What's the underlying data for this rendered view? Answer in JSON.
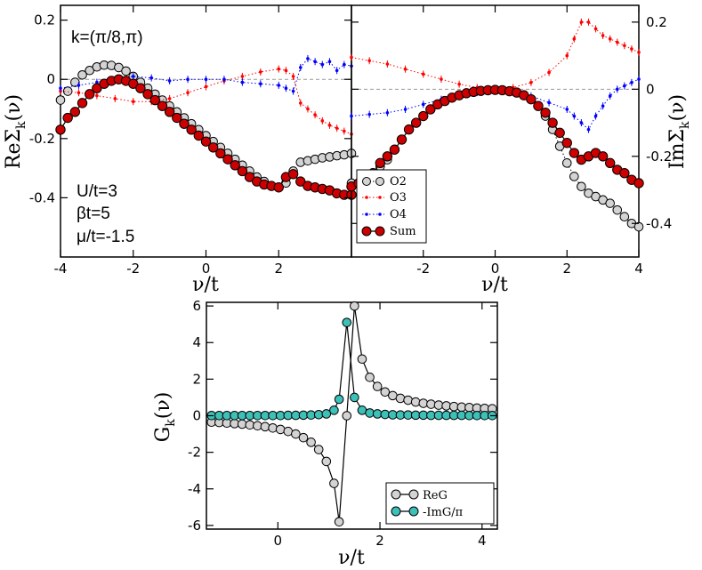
{
  "chart_data": [
    {
      "id": "left",
      "type": "scatter",
      "annotations": {
        "k_label": "k=(π/8,π)",
        "params": [
          "U/t=3",
          "βt=5",
          "μ/t=-1.5"
        ]
      },
      "xlabel": {
        "main": "ν/t"
      },
      "ylabel": {
        "prefix": "ReΣ",
        "sub": "k",
        "suffix": "(ν)"
      },
      "xlim": [
        -4,
        4
      ],
      "ylim": [
        -0.6,
        0.25
      ],
      "xticks": [
        -4,
        -2,
        0,
        2
      ],
      "xtick_labels": [
        "-4",
        "-2",
        "0",
        "2"
      ],
      "yticks": [
        -0.4,
        -0.2,
        0,
        0.2
      ],
      "ytick_labels": [
        "-0.4",
        "-0.2",
        "0",
        "0.2"
      ],
      "zero_line": true,
      "series": [
        {
          "key": "O2",
          "color": "#d3d3d3",
          "marker": "circle",
          "style": "dotted",
          "x": [
            -4,
            -3.8,
            -3.6,
            -3.4,
            -3.2,
            -3,
            -2.8,
            -2.6,
            -2.4,
            -2.2,
            -2,
            -1.8,
            -1.6,
            -1.4,
            -1.2,
            -1,
            -0.8,
            -0.6,
            -0.4,
            -0.2,
            0,
            0.2,
            0.4,
            0.6,
            0.8,
            1,
            1.2,
            1.4,
            1.6,
            1.8,
            2,
            2.2,
            2.4,
            2.6,
            2.8,
            3,
            3.2,
            3.4,
            3.6,
            3.8,
            4
          ],
          "y": [
            -0.07,
            -0.04,
            -0.01,
            0.015,
            0.03,
            0.042,
            0.048,
            0.047,
            0.04,
            0.028,
            0.01,
            -0.01,
            -0.03,
            -0.05,
            -0.07,
            -0.09,
            -0.11,
            -0.13,
            -0.15,
            -0.17,
            -0.19,
            -0.21,
            -0.23,
            -0.25,
            -0.27,
            -0.29,
            -0.31,
            -0.33,
            -0.345,
            -0.36,
            -0.365,
            -0.35,
            -0.31,
            -0.28,
            -0.275,
            -0.27,
            -0.265,
            -0.262,
            -0.258,
            -0.255,
            -0.25
          ]
        },
        {
          "key": "O3",
          "color": "#ff0000",
          "marker": "dot",
          "style": "dotted",
          "x": [
            -4,
            -3.5,
            -3,
            -2.5,
            -2,
            -1.5,
            -1,
            -0.5,
            0,
            0.5,
            1,
            1.5,
            2,
            2.2,
            2.4,
            2.6,
            2.8,
            3,
            3.2,
            3.4,
            3.6,
            3.8,
            4
          ],
          "y": [
            -0.04,
            -0.045,
            -0.055,
            -0.065,
            -0.075,
            -0.075,
            -0.065,
            -0.045,
            -0.025,
            -0.005,
            0.01,
            0.025,
            0.035,
            0.03,
            0.01,
            -0.08,
            -0.1,
            -0.12,
            -0.14,
            -0.155,
            -0.165,
            -0.175,
            -0.185
          ]
        },
        {
          "key": "O4",
          "color": "#0000ff",
          "marker": "dot",
          "style": "dotted",
          "x": [
            -4,
            -3.5,
            -3,
            -2.5,
            -2,
            -1.5,
            -1,
            -0.5,
            0,
            0.5,
            1,
            1.5,
            2,
            2.2,
            2.4,
            2.6,
            2.8,
            3,
            3.2,
            3.4,
            3.6,
            3.8,
            4
          ],
          "y": [
            -0.03,
            -0.02,
            -0.01,
            0.0,
            0.01,
            0.005,
            -0.005,
            0.0,
            0.0,
            0.0,
            -0.01,
            -0.015,
            -0.02,
            -0.03,
            -0.04,
            0.04,
            0.07,
            0.06,
            0.05,
            0.06,
            0.03,
            0.05,
            0.045
          ]
        },
        {
          "key": "Sum",
          "color": "#cc0000",
          "marker": "circle",
          "style": "solid",
          "x": [
            -4,
            -3.8,
            -3.6,
            -3.4,
            -3.2,
            -3,
            -2.8,
            -2.6,
            -2.4,
            -2.2,
            -2,
            -1.8,
            -1.6,
            -1.4,
            -1.2,
            -1,
            -0.8,
            -0.6,
            -0.4,
            -0.2,
            0,
            0.2,
            0.4,
            0.6,
            0.8,
            1,
            1.2,
            1.4,
            1.6,
            1.8,
            2,
            2.2,
            2.4,
            2.6,
            2.8,
            3,
            3.2,
            3.4,
            3.6,
            3.8,
            4
          ],
          "y": [
            -0.17,
            -0.13,
            -0.11,
            -0.08,
            -0.05,
            -0.03,
            -0.015,
            -0.005,
            0.0,
            -0.005,
            -0.015,
            -0.03,
            -0.05,
            -0.07,
            -0.09,
            -0.11,
            -0.13,
            -0.15,
            -0.17,
            -0.19,
            -0.21,
            -0.23,
            -0.25,
            -0.27,
            -0.29,
            -0.31,
            -0.33,
            -0.345,
            -0.355,
            -0.36,
            -0.365,
            -0.33,
            -0.32,
            -0.345,
            -0.36,
            -0.365,
            -0.37,
            -0.375,
            -0.385,
            -0.39,
            -0.39
          ]
        }
      ]
    },
    {
      "id": "right",
      "type": "scatter",
      "xlabel": {
        "main": "ν/t"
      },
      "ylabel": {
        "prefix": "ImΣ",
        "sub": "k",
        "suffix": "(ν)"
      },
      "xlim": [
        -4,
        4
      ],
      "ylim": [
        -0.5,
        0.25
      ],
      "xticks": [
        -2,
        0,
        2,
        4
      ],
      "xtick_labels": [
        "-2",
        "0",
        "2",
        "4"
      ],
      "yticks": [
        -0.4,
        -0.2,
        0,
        0.2
      ],
      "ytick_labels": [
        "-0.4",
        "-0.2",
        "0",
        "0.2"
      ],
      "zero_line": true,
      "legend": {
        "position": "lower-left",
        "entries": [
          "O2",
          "O3",
          "O4",
          "Sum"
        ]
      },
      "series": [
        {
          "key": "O2",
          "color": "#d3d3d3",
          "marker": "circle",
          "style": "dotted",
          "x": [
            -4,
            -3.8,
            -3.6,
            -3.4,
            -3.2,
            -3,
            -2.8,
            -2.6,
            -2.4,
            -2.2,
            -2,
            -1.8,
            -1.6,
            -1.4,
            -1.2,
            -1,
            -0.8,
            -0.6,
            -0.4,
            -0.2,
            0,
            0.2,
            0.4,
            0.6,
            0.8,
            1,
            1.2,
            1.4,
            1.6,
            1.8,
            2,
            2.2,
            2.4,
            2.6,
            2.8,
            3,
            3.2,
            3.4,
            3.6,
            3.8,
            4
          ],
          "y": [
            -0.28,
            -0.28,
            -0.27,
            -0.25,
            -0.23,
            -0.21,
            -0.18,
            -0.15,
            -0.12,
            -0.1,
            -0.08,
            -0.06,
            -0.045,
            -0.035,
            -0.025,
            -0.018,
            -0.012,
            -0.008,
            -0.005,
            -0.003,
            -0.002,
            -0.003,
            -0.006,
            -0.01,
            -0.018,
            -0.03,
            -0.05,
            -0.08,
            -0.12,
            -0.17,
            -0.22,
            -0.26,
            -0.29,
            -0.31,
            -0.32,
            -0.33,
            -0.34,
            -0.36,
            -0.38,
            -0.4,
            -0.41
          ]
        },
        {
          "key": "O3",
          "color": "#ff0000",
          "marker": "dot",
          "style": "dotted",
          "x": [
            -4,
            -3.5,
            -3,
            -2.5,
            -2,
            -1.5,
            -1,
            -0.5,
            0,
            0.5,
            1,
            1.5,
            2,
            2.2,
            2.4,
            2.6,
            2.8,
            3,
            3.2,
            3.4,
            3.6,
            3.8,
            4
          ],
          "y": [
            0.095,
            0.085,
            0.075,
            0.06,
            0.045,
            0.03,
            0.015,
            0.005,
            0.002,
            0.005,
            0.02,
            0.05,
            0.1,
            0.15,
            0.2,
            0.2,
            0.18,
            0.16,
            0.15,
            0.14,
            0.13,
            0.12,
            0.11
          ]
        },
        {
          "key": "O4",
          "color": "#0000ff",
          "marker": "dot",
          "style": "dotted",
          "x": [
            -4,
            -3.5,
            -3,
            -2.5,
            -2,
            -1.5,
            -1,
            -0.5,
            0,
            0.5,
            1,
            1.5,
            2,
            2.2,
            2.4,
            2.6,
            2.8,
            3,
            3.2,
            3.4,
            3.6,
            3.8,
            4
          ],
          "y": [
            -0.08,
            -0.075,
            -0.07,
            -0.06,
            -0.045,
            -0.03,
            -0.02,
            -0.01,
            -0.005,
            -0.01,
            -0.02,
            -0.04,
            -0.06,
            -0.08,
            -0.1,
            -0.12,
            -0.08,
            -0.05,
            -0.02,
            0.0,
            0.01,
            0.02,
            0.03
          ]
        },
        {
          "key": "Sum",
          "color": "#cc0000",
          "marker": "circle",
          "style": "solid",
          "x": [
            -4,
            -3.8,
            -3.6,
            -3.4,
            -3.2,
            -3,
            -2.8,
            -2.6,
            -2.4,
            -2.2,
            -2,
            -1.8,
            -1.6,
            -1.4,
            -1.2,
            -1,
            -0.8,
            -0.6,
            -0.4,
            -0.2,
            0,
            0.2,
            0.4,
            0.6,
            0.8,
            1,
            1.2,
            1.4,
            1.6,
            1.8,
            2,
            2.2,
            2.4,
            2.6,
            2.8,
            3,
            3.2,
            3.4,
            3.6,
            3.8,
            4
          ],
          "y": [
            -0.29,
            -0.28,
            -0.27,
            -0.25,
            -0.22,
            -0.2,
            -0.18,
            -0.15,
            -0.12,
            -0.1,
            -0.08,
            -0.06,
            -0.045,
            -0.035,
            -0.025,
            -0.018,
            -0.012,
            -0.008,
            -0.005,
            -0.003,
            -0.002,
            -0.003,
            -0.006,
            -0.01,
            -0.018,
            -0.03,
            -0.05,
            -0.07,
            -0.1,
            -0.13,
            -0.16,
            -0.19,
            -0.21,
            -0.2,
            -0.19,
            -0.2,
            -0.22,
            -0.24,
            -0.25,
            -0.27,
            -0.28
          ]
        }
      ]
    },
    {
      "id": "bottom",
      "type": "line",
      "xlabel": {
        "main": "ν/t"
      },
      "ylabel": {
        "prefix": "G",
        "sub": "k",
        "suffix": "(ν)"
      },
      "xlim": [
        -1.4,
        4.3
      ],
      "ylim": [
        -6.2,
        6.2
      ],
      "xticks": [
        0,
        2,
        4
      ],
      "xtick_labels": [
        "0",
        "2",
        "4"
      ],
      "yticks": [
        -6,
        -4,
        -2,
        0,
        2,
        4,
        6
      ],
      "ytick_labels": [
        "-6",
        "-4",
        "-2",
        "0",
        "2",
        "4",
        "6"
      ],
      "legend": {
        "position": "lower-right",
        "entries": [
          "ReG",
          "-ImG/π"
        ]
      },
      "series": [
        {
          "key": "ReG",
          "color": "#d3d3d3",
          "marker": "circle",
          "style": "solid",
          "x": [
            -1.3,
            -1.15,
            -1,
            -0.85,
            -0.7,
            -0.55,
            -0.4,
            -0.25,
            -0.1,
            0.05,
            0.2,
            0.35,
            0.5,
            0.65,
            0.8,
            0.95,
            1.1,
            1.2,
            1.35,
            1.5,
            1.65,
            1.8,
            1.95,
            2.1,
            2.25,
            2.4,
            2.55,
            2.7,
            2.85,
            3,
            3.15,
            3.3,
            3.45,
            3.6,
            3.75,
            3.9,
            4.05,
            4.2
          ],
          "y": [
            -0.35,
            -0.37,
            -0.4,
            -0.43,
            -0.46,
            -0.5,
            -0.55,
            -0.6,
            -0.67,
            -0.75,
            -0.86,
            -1.0,
            -1.2,
            -1.45,
            -1.85,
            -2.5,
            -3.7,
            -5.8,
            0.0,
            6.0,
            3.1,
            2.1,
            1.6,
            1.3,
            1.1,
            0.95,
            0.85,
            0.75,
            0.68,
            0.63,
            0.58,
            0.54,
            0.5,
            0.47,
            0.45,
            0.42,
            0.4,
            0.38
          ]
        },
        {
          "key": "-ImG/π",
          "color": "#3cc0b8",
          "marker": "circle",
          "style": "solid",
          "x": [
            -1.3,
            -1.15,
            -1,
            -0.85,
            -0.7,
            -0.55,
            -0.4,
            -0.25,
            -0.1,
            0.05,
            0.2,
            0.35,
            0.5,
            0.65,
            0.8,
            0.95,
            1.1,
            1.2,
            1.35,
            1.5,
            1.65,
            1.8,
            1.95,
            2.1,
            2.25,
            2.4,
            2.55,
            2.7,
            2.85,
            3,
            3.15,
            3.3,
            3.45,
            3.6,
            3.75,
            3.9,
            4.05,
            4.2
          ],
          "y": [
            0.01,
            0.01,
            0.01,
            0.01,
            0.01,
            0.01,
            0.01,
            0.01,
            0.01,
            0.01,
            0.02,
            0.02,
            0.03,
            0.04,
            0.06,
            0.1,
            0.3,
            0.9,
            5.1,
            1.0,
            0.3,
            0.15,
            0.1,
            0.07,
            0.05,
            0.04,
            0.04,
            0.03,
            0.03,
            0.02,
            0.02,
            0.02,
            0.02,
            0.02,
            0.01,
            0.01,
            0.01,
            0.01
          ]
        }
      ]
    }
  ]
}
